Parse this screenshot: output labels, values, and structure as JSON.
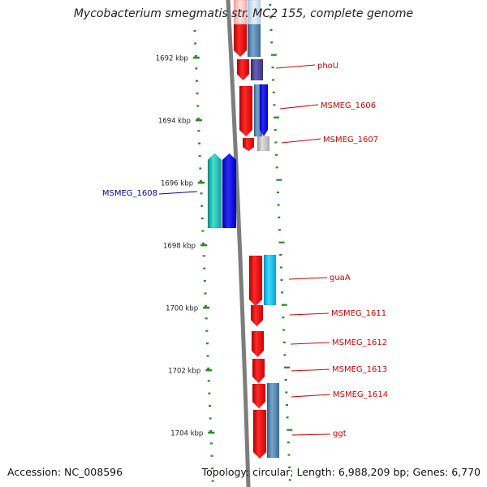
{
  "title": "Mycobacterium smegmatis str. MC2 155, complete genome",
  "footer": {
    "accession_text": "Accession: NC_008596",
    "topology_text": "Topology: circular; Length: 6,988,209 bp; Genes: 6,770"
  },
  "colors": {
    "backbone": "#808080",
    "ruler_tick": "#2a8a2a",
    "gene_label_forward": "#d40000",
    "gene_label_reverse": "#0000aa",
    "cds_red": "#ff0000",
    "cds_steelblue": "#4682b4",
    "cds_blue": "#0000ff",
    "cds_darkslateblue": "#483d8b",
    "cds_lightgray": "#c0c0c0",
    "cds_cyan": "#00bbdd",
    "cds_teal": "#20b2aa"
  },
  "ruler": {
    "unit": "kbp",
    "ticks": [
      {
        "label": "1692 kbp",
        "kbp": 1692
      },
      {
        "label": "1694 kbp",
        "kbp": 1694
      },
      {
        "label": "1696 kbp",
        "kbp": 1696
      },
      {
        "label": "1698 kbp",
        "kbp": 1698
      },
      {
        "label": "1700 kbp",
        "kbp": 1700
      },
      {
        "label": "1702 kbp",
        "kbp": 1702
      },
      {
        "label": "1704 kbp",
        "kbp": 1704
      }
    ]
  },
  "genes": [
    {
      "label": "phoU",
      "strand": "+"
    },
    {
      "label": "MSMEG_1606",
      "strand": "+"
    },
    {
      "label": "MSMEG_1607",
      "strand": "+"
    },
    {
      "label": "MSMEG_1608",
      "strand": "-"
    },
    {
      "label": "guaA",
      "strand": "+"
    },
    {
      "label": "MSMEG_1611",
      "strand": "+"
    },
    {
      "label": "MSMEG_1612",
      "strand": "+"
    },
    {
      "label": "MSMEG_1613",
      "strand": "+"
    },
    {
      "label": "MSMEG_1614",
      "strand": "+"
    },
    {
      "label": "ggt",
      "strand": "+"
    }
  ]
}
